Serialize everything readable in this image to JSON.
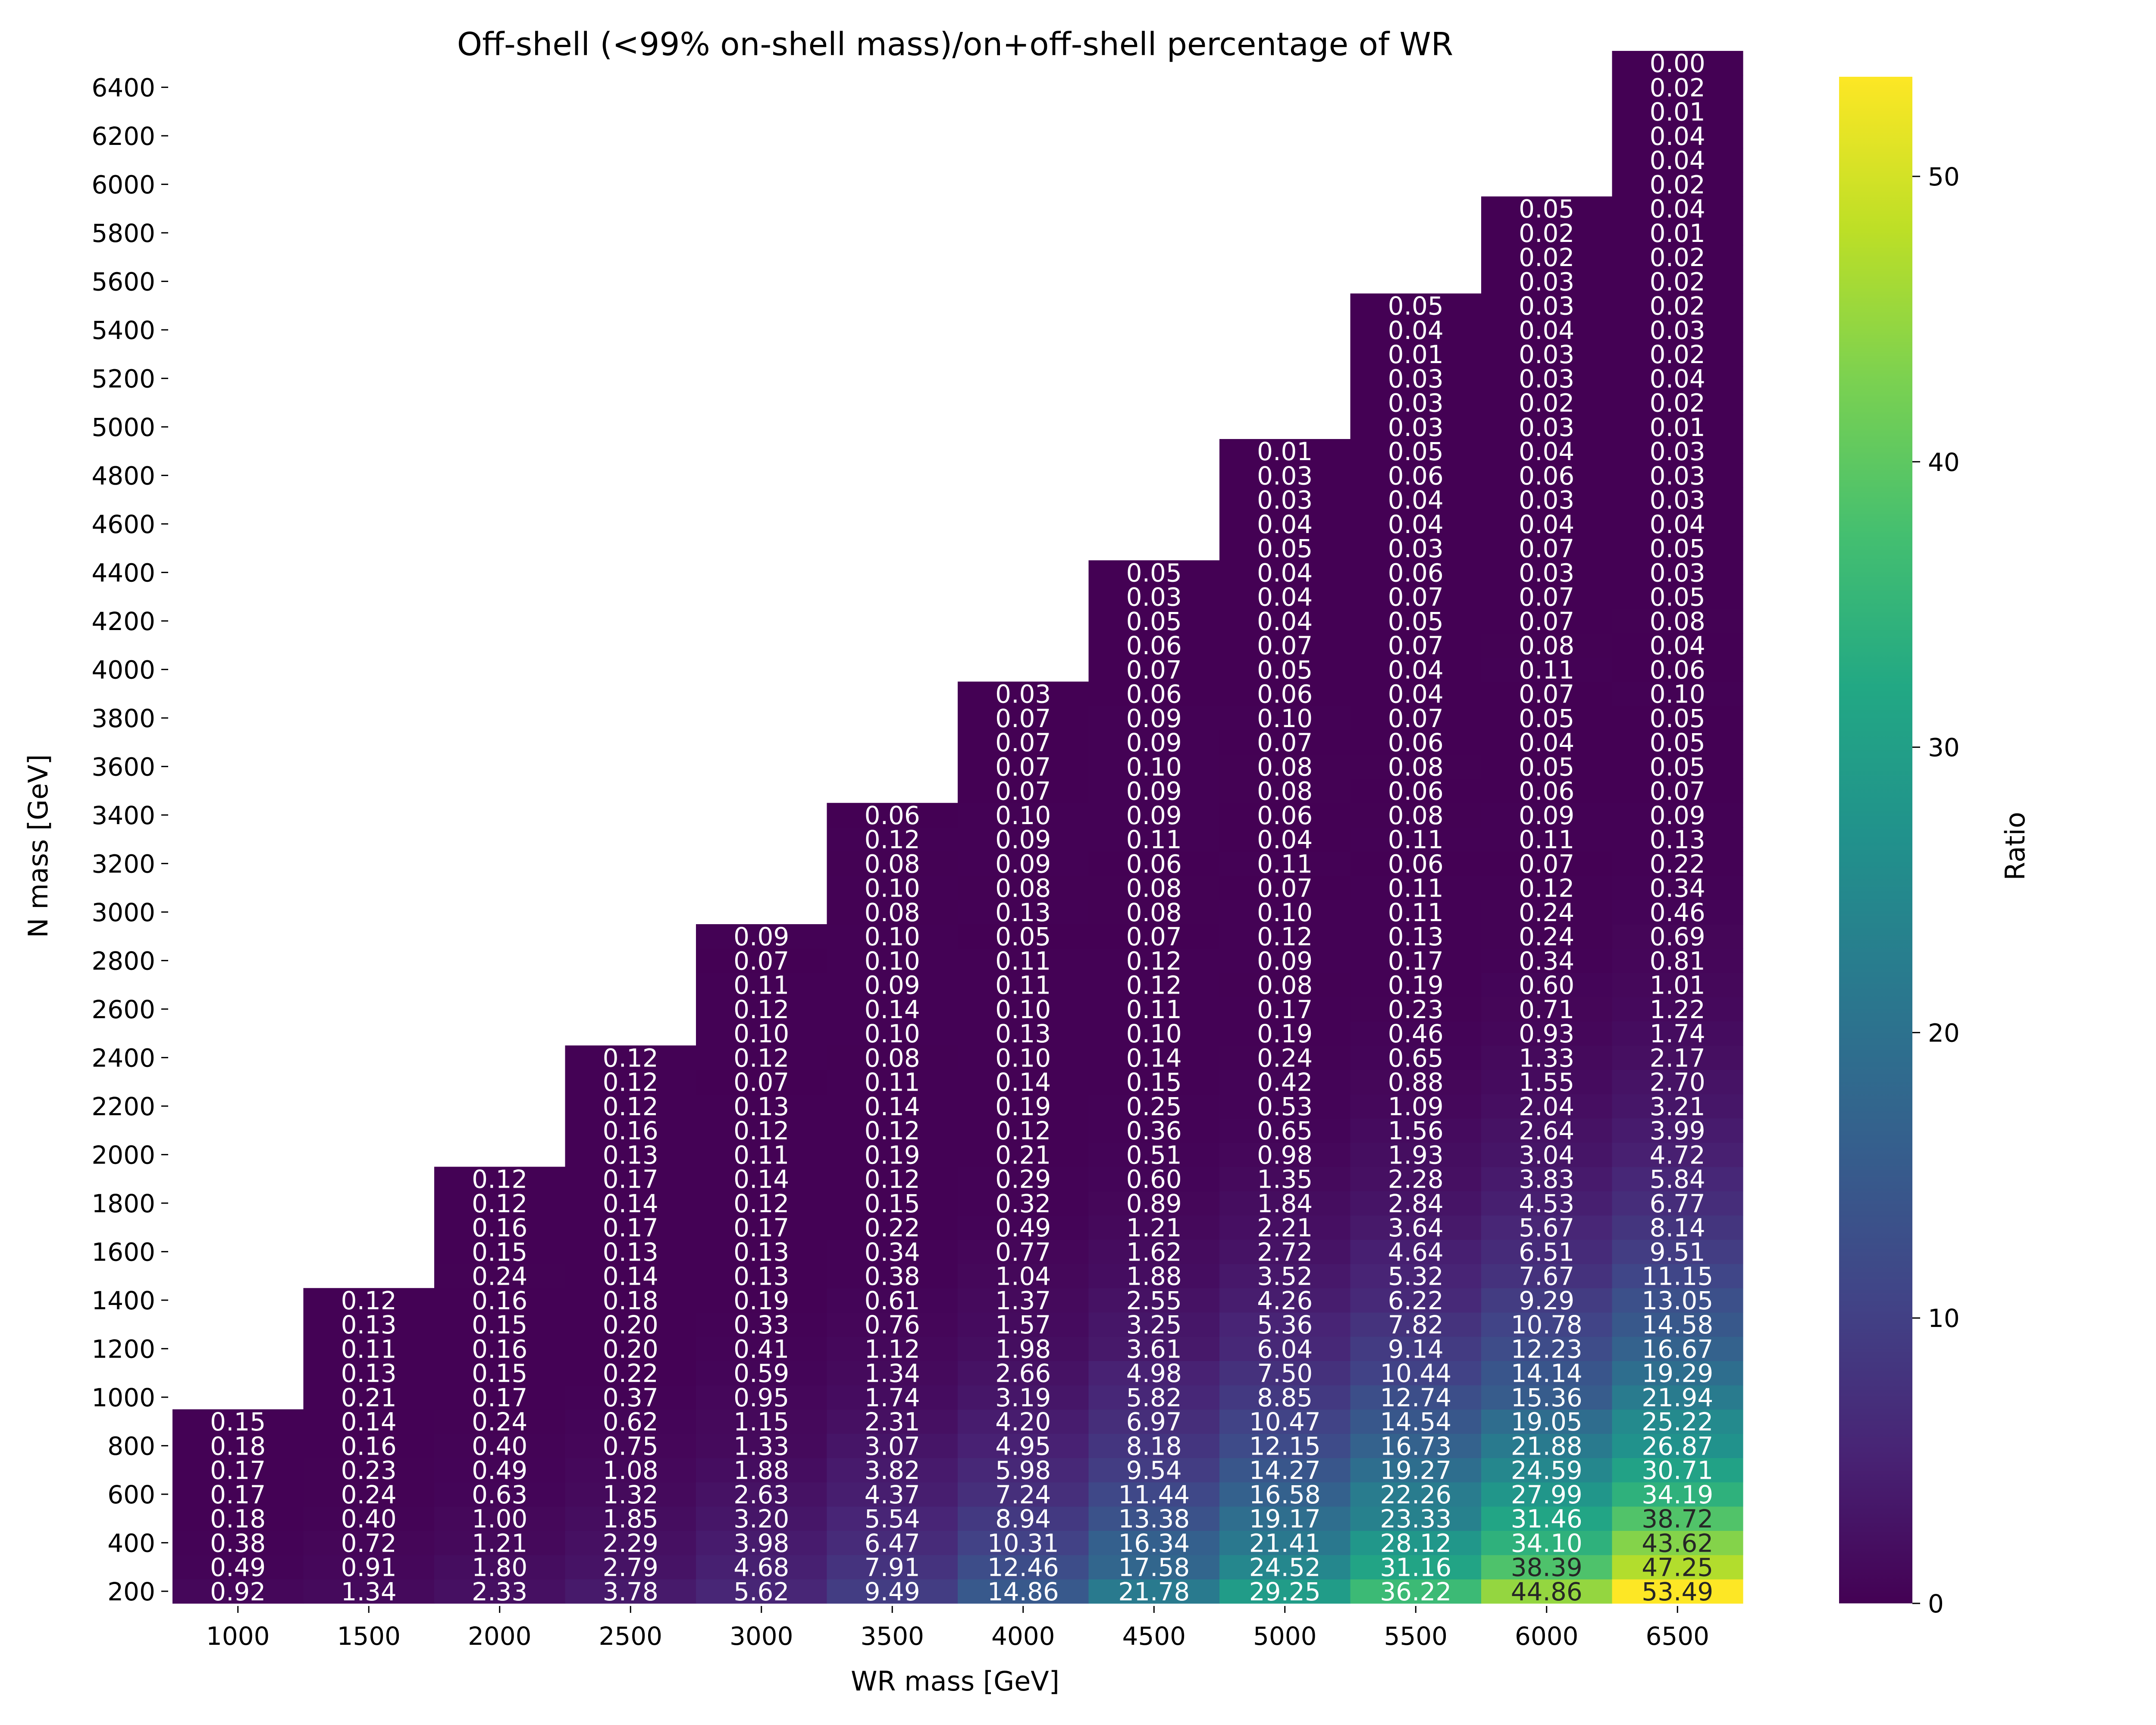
{
  "chart_data": {
    "type": "heatmap",
    "title": "Off-shell (<99% on-shell mass)/on+off-shell percentage of WR",
    "xlabel": "WR mass [GeV]",
    "ylabel": "N mass [GeV]",
    "colorbar_label": "Ratio",
    "colormap": "viridis",
    "vmin": 0,
    "vmax": 53.49,
    "colorbar_ticks": [
      "0",
      "10",
      "20",
      "30",
      "40",
      "50"
    ],
    "x": [
      "1000",
      "1500",
      "2000",
      "2500",
      "3000",
      "3500",
      "4000",
      "4500",
      "5000",
      "5500",
      "6000",
      "6500"
    ],
    "y_ticks": [
      "200",
      "400",
      "600",
      "800",
      "1000",
      "1200",
      "1400",
      "1600",
      "1800",
      "2000",
      "2200",
      "2400",
      "2600",
      "2800",
      "3000",
      "3200",
      "3400",
      "3600",
      "3800",
      "4000",
      "4200",
      "4400",
      "4600",
      "4800",
      "5000",
      "5200",
      "5400",
      "5600",
      "5800",
      "6000",
      "6200",
      "6400"
    ],
    "columns": [
      [
        "0.92",
        "0.49",
        "0.38",
        "0.18",
        "0.17",
        "0.17",
        "0.18",
        "0.15"
      ],
      [
        "1.34",
        "0.91",
        "0.72",
        "0.40",
        "0.24",
        "0.23",
        "0.16",
        "0.14",
        "0.21",
        "0.13",
        "0.11",
        "0.13",
        "0.12"
      ],
      [
        "2.33",
        "1.80",
        "1.21",
        "1.00",
        "0.63",
        "0.49",
        "0.40",
        "0.24",
        "0.17",
        "0.15",
        "0.16",
        "0.15",
        "0.16",
        "0.24",
        "0.15",
        "0.16",
        "0.12",
        "0.12"
      ],
      [
        "3.78",
        "2.79",
        "2.29",
        "1.85",
        "1.32",
        "1.08",
        "0.75",
        "0.62",
        "0.37",
        "0.22",
        "0.20",
        "0.20",
        "0.18",
        "0.14",
        "0.13",
        "0.17",
        "0.14",
        "0.17",
        "0.13",
        "0.16",
        "0.12",
        "0.12",
        "0.12"
      ],
      [
        "5.62",
        "4.68",
        "3.98",
        "3.20",
        "2.63",
        "1.88",
        "1.33",
        "1.15",
        "0.95",
        "0.59",
        "0.41",
        "0.33",
        "0.19",
        "0.13",
        "0.13",
        "0.17",
        "0.12",
        "0.14",
        "0.11",
        "0.12",
        "0.13",
        "0.07",
        "0.12",
        "0.10",
        "0.12",
        "0.11",
        "0.07",
        "0.09"
      ],
      [
        "9.49",
        "7.91",
        "6.47",
        "5.54",
        "4.37",
        "3.82",
        "3.07",
        "2.31",
        "1.74",
        "1.34",
        "1.12",
        "0.76",
        "0.61",
        "0.38",
        "0.34",
        "0.22",
        "0.15",
        "0.12",
        "0.19",
        "0.12",
        "0.14",
        "0.11",
        "0.08",
        "0.10",
        "0.14",
        "0.09",
        "0.10",
        "0.10",
        "0.08",
        "0.10",
        "0.08",
        "0.12",
        "0.06"
      ],
      [
        "14.86",
        "12.46",
        "10.31",
        "8.94",
        "7.24",
        "5.98",
        "4.95",
        "4.20",
        "3.19",
        "2.66",
        "1.98",
        "1.57",
        "1.37",
        "1.04",
        "0.77",
        "0.49",
        "0.32",
        "0.29",
        "0.21",
        "0.12",
        "0.19",
        "0.14",
        "0.10",
        "0.13",
        "0.10",
        "0.11",
        "0.11",
        "0.05",
        "0.13",
        "0.08",
        "0.09",
        "0.09",
        "0.10",
        "0.07",
        "0.07",
        "0.07",
        "0.07",
        "0.03"
      ],
      [
        "21.78",
        "17.58",
        "16.34",
        "13.38",
        "11.44",
        "9.54",
        "8.18",
        "6.97",
        "5.82",
        "4.98",
        "3.61",
        "3.25",
        "2.55",
        "1.88",
        "1.62",
        "1.21",
        "0.89",
        "0.60",
        "0.51",
        "0.36",
        "0.25",
        "0.15",
        "0.14",
        "0.10",
        "0.11",
        "0.12",
        "0.12",
        "0.07",
        "0.08",
        "0.08",
        "0.06",
        "0.11",
        "0.09",
        "0.09",
        "0.10",
        "0.09",
        "0.09",
        "0.06",
        "0.07",
        "0.06",
        "0.05",
        "0.03",
        "0.05"
      ],
      [
        "29.25",
        "24.52",
        "21.41",
        "19.17",
        "16.58",
        "14.27",
        "12.15",
        "10.47",
        "8.85",
        "7.50",
        "6.04",
        "5.36",
        "4.26",
        "3.52",
        "2.72",
        "2.21",
        "1.84",
        "1.35",
        "0.98",
        "0.65",
        "0.53",
        "0.42",
        "0.24",
        "0.19",
        "0.17",
        "0.08",
        "0.09",
        "0.12",
        "0.10",
        "0.07",
        "0.11",
        "0.04",
        "0.06",
        "0.08",
        "0.08",
        "0.07",
        "0.10",
        "0.06",
        "0.05",
        "0.07",
        "0.04",
        "0.04",
        "0.04",
        "0.05",
        "0.04",
        "0.03",
        "0.03",
        "0.01"
      ],
      [
        "36.22",
        "31.16",
        "28.12",
        "23.33",
        "22.26",
        "19.27",
        "16.73",
        "14.54",
        "12.74",
        "10.44",
        "9.14",
        "7.82",
        "6.22",
        "5.32",
        "4.64",
        "3.64",
        "2.84",
        "2.28",
        "1.93",
        "1.56",
        "1.09",
        "0.88",
        "0.65",
        "0.46",
        "0.23",
        "0.19",
        "0.17",
        "0.13",
        "0.11",
        "0.11",
        "0.06",
        "0.11",
        "0.08",
        "0.06",
        "0.08",
        "0.06",
        "0.07",
        "0.04",
        "0.04",
        "0.07",
        "0.05",
        "0.07",
        "0.06",
        "0.03",
        "0.04",
        "0.04",
        "0.06",
        "0.05",
        "0.03",
        "0.03",
        "0.03",
        "0.01",
        "0.04",
        "0.05"
      ],
      [
        "44.86",
        "38.39",
        "34.10",
        "31.46",
        "27.99",
        "24.59",
        "21.88",
        "19.05",
        "15.36",
        "14.14",
        "12.23",
        "10.78",
        "9.29",
        "7.67",
        "6.51",
        "5.67",
        "4.53",
        "3.83",
        "3.04",
        "2.64",
        "2.04",
        "1.55",
        "1.33",
        "0.93",
        "0.71",
        "0.60",
        "0.34",
        "0.24",
        "0.24",
        "0.12",
        "0.07",
        "0.11",
        "0.09",
        "0.06",
        "0.05",
        "0.04",
        "0.05",
        "0.07",
        "0.11",
        "0.08",
        "0.07",
        "0.07",
        "0.03",
        "0.07",
        "0.04",
        "0.03",
        "0.06",
        "0.04",
        "0.03",
        "0.02",
        "0.03",
        "0.03",
        "0.04",
        "0.03",
        "0.03",
        "0.02",
        "0.02",
        "0.05"
      ],
      [
        "53.49",
        "47.25",
        "43.62",
        "38.72",
        "34.19",
        "30.71",
        "26.87",
        "25.22",
        "21.94",
        "19.29",
        "16.67",
        "14.58",
        "13.05",
        "11.15",
        "9.51",
        "8.14",
        "6.77",
        "5.84",
        "4.72",
        "3.99",
        "3.21",
        "2.70",
        "2.17",
        "1.74",
        "1.22",
        "1.01",
        "0.81",
        "0.69",
        "0.46",
        "0.34",
        "0.22",
        "0.13",
        "0.09",
        "0.07",
        "0.05",
        "0.05",
        "0.05",
        "0.10",
        "0.06",
        "0.04",
        "0.08",
        "0.05",
        "0.03",
        "0.05",
        "0.04",
        "0.03",
        "0.03",
        "0.03",
        "0.01",
        "0.02",
        "0.04",
        "0.02",
        "0.03",
        "0.02",
        "0.02",
        "0.02",
        "0.01",
        "0.04",
        "0.02",
        "0.04",
        "0.04",
        "0.01",
        "0.02",
        "0.00"
      ]
    ]
  }
}
